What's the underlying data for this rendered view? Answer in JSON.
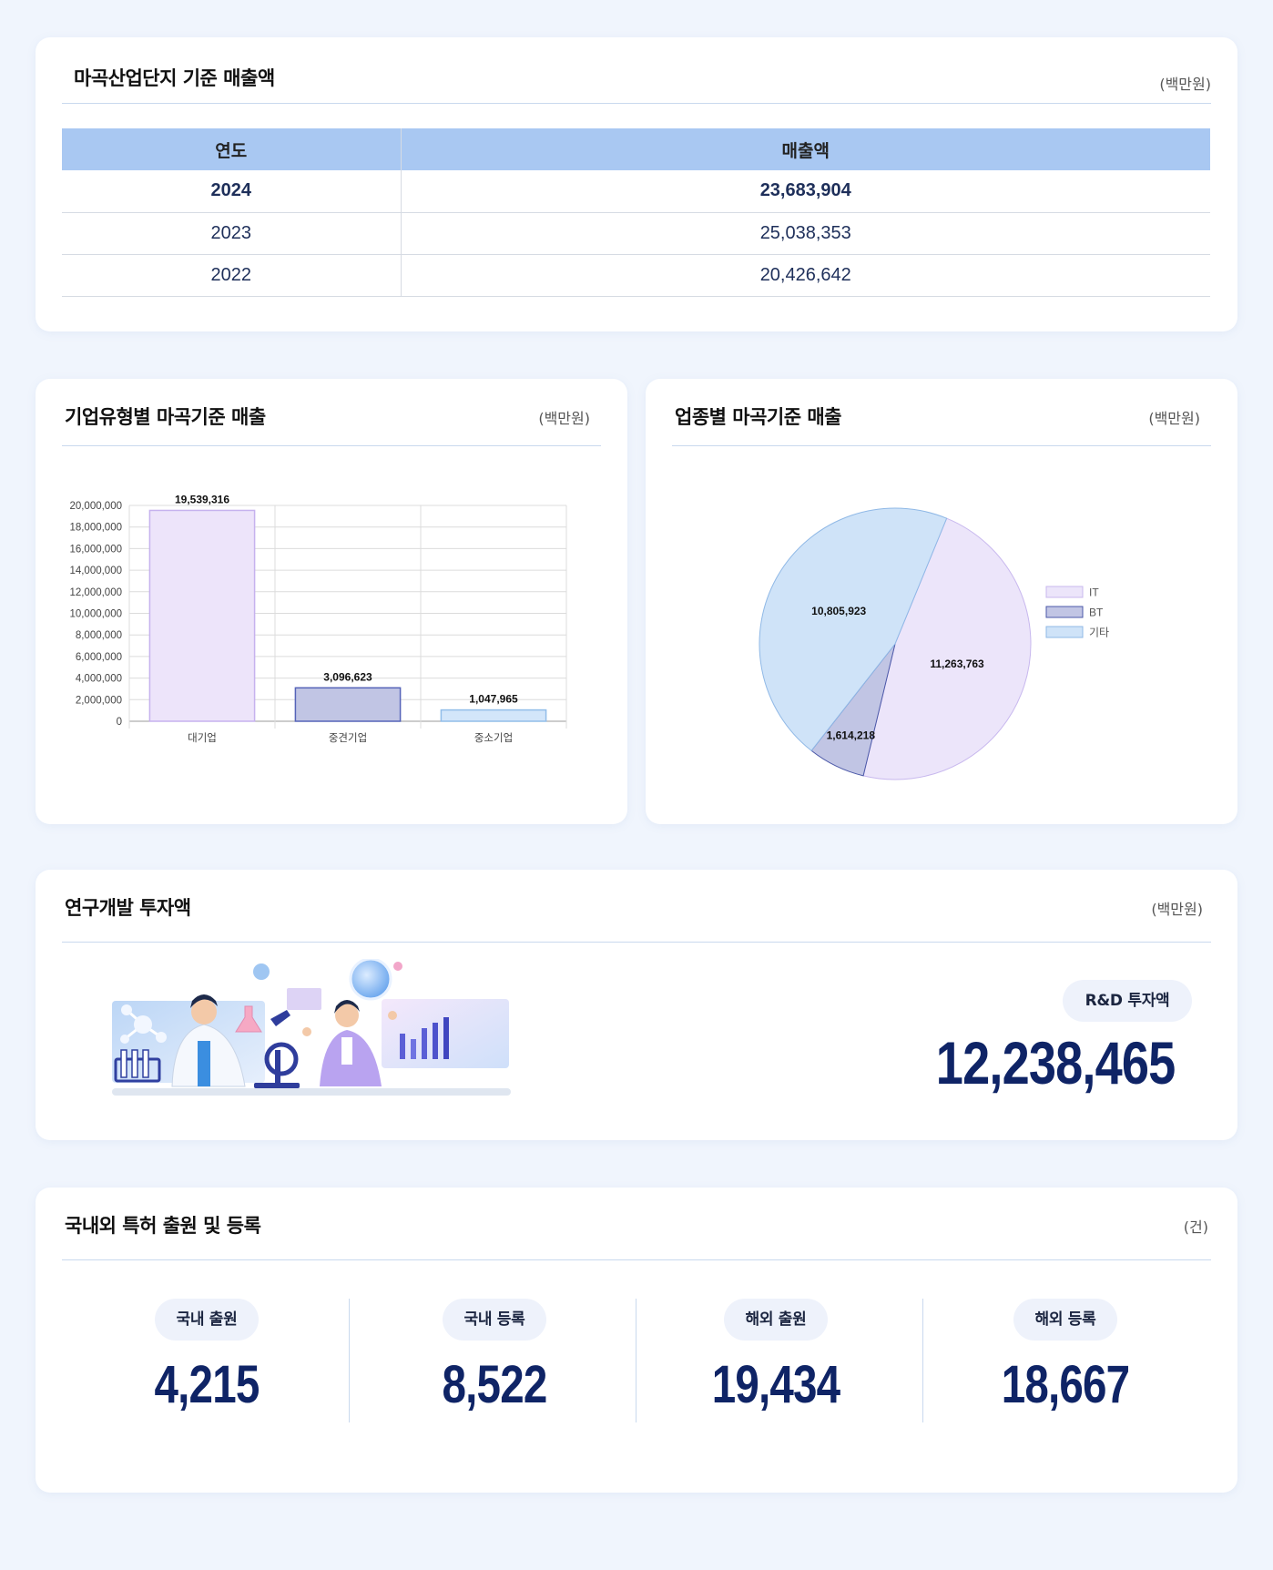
{
  "sales_section": {
    "title": "마곡산업단지 기준 매출액",
    "unit": "(백만원)",
    "headers": [
      "연도",
      "매출액"
    ],
    "rows": [
      {
        "year": "2024",
        "amount": "23,683,904"
      },
      {
        "year": "2023",
        "amount": "25,038,353"
      },
      {
        "year": "2022",
        "amount": "20,426,642"
      }
    ]
  },
  "company_type_section": {
    "title": "기업유형별 마곡기준 매출",
    "unit": "(백만원)"
  },
  "industry_section": {
    "title": "업종별 마곡기준 매출",
    "unit": "(백만원)"
  },
  "rnd_section": {
    "title": "연구개발 투자액",
    "unit": "(백만원)",
    "pill": "R&D 투자액",
    "value": "12,238,465"
  },
  "patent_section": {
    "title": "국내외 특허 출원 및 등록",
    "unit": "(건)",
    "stats": [
      {
        "label": "국내 출원",
        "value": "4,215"
      },
      {
        "label": "국내 등록",
        "value": "8,522"
      },
      {
        "label": "해외 출원",
        "value": "19,434"
      },
      {
        "label": "해외 등록",
        "value": "18,667"
      }
    ]
  },
  "colors": {
    "bar_large": "#ede4fa",
    "bar_mid": "#c1c5e4",
    "bar_small": "#d3e6fa",
    "pie_it": "#ece5fa",
    "pie_bt": "#c1c5e4",
    "pie_other": "#cfe3f8"
  },
  "chart_data": [
    {
      "type": "bar",
      "title": "기업유형별 마곡기준 매출",
      "categories": [
        "대기업",
        "중견기업",
        "중소기업"
      ],
      "values": [
        19539316,
        3096623,
        1047965
      ],
      "value_labels": [
        "19,539,316",
        "3,096,623",
        "1,047,965"
      ],
      "ylim": [
        0,
        20000000
      ],
      "yticks": [
        0,
        2000000,
        4000000,
        6000000,
        8000000,
        10000000,
        12000000,
        14000000,
        16000000,
        18000000,
        20000000
      ],
      "ytick_labels": [
        "0",
        "2,000,000",
        "4,000,000",
        "6,000,000",
        "8,000,000",
        "10,000,000",
        "12,000,000",
        "14,000,000",
        "16,000,000",
        "18,000,000",
        "20,000,000"
      ],
      "grid": true
    },
    {
      "type": "pie",
      "title": "업종별 마곡기준 매출",
      "labels": [
        "IT",
        "BT",
        "기타"
      ],
      "values": [
        11263763,
        1614218,
        10805923
      ],
      "value_labels": [
        "11,263,763",
        "1,614,218",
        "10,805,923"
      ],
      "legend": "right"
    }
  ]
}
